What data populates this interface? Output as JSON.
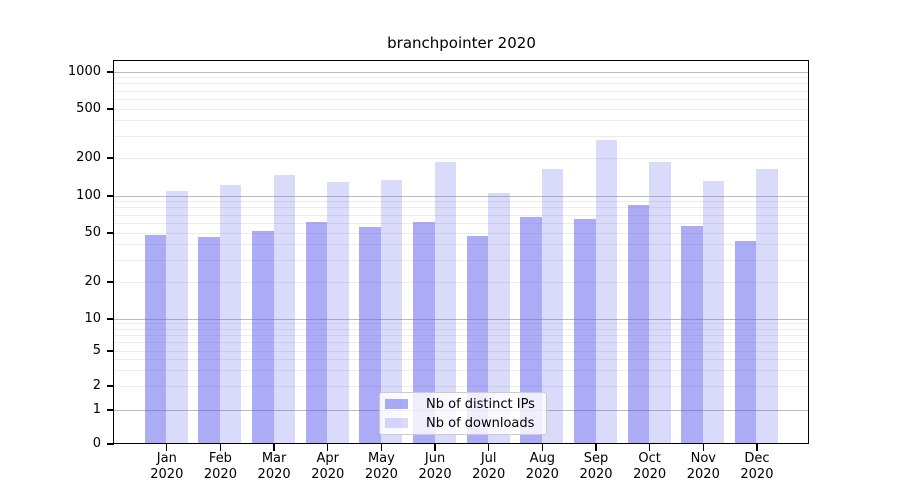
{
  "title": "branchpointer 2020",
  "legend": {
    "items": [
      {
        "label": "Nb of distinct IPs",
        "series": "ip"
      },
      {
        "label": "Nb of downloads",
        "series": "dl"
      }
    ]
  },
  "colors": {
    "bar_blue": "#5858ee",
    "ip_alpha": 0.5,
    "dl_alpha": 0.22,
    "major_grid": "#bbbbbb",
    "minor_grid": "#ececec",
    "axis": "#000000",
    "legend_border": "#cccccc"
  },
  "chart_data": {
    "type": "bar",
    "title": "branchpointer 2020",
    "categories": [
      "Jan 2020",
      "Feb 2020",
      "Mar 2020",
      "Apr 2020",
      "May 2020",
      "Jun 2020",
      "Jul 2020",
      "Aug 2020",
      "Sep 2020",
      "Oct 2020",
      "Nov 2020",
      "Dec 2020"
    ],
    "series": [
      {
        "name": "Nb of distinct IPs",
        "values": [
          48,
          46,
          52,
          62,
          56,
          62,
          47,
          68,
          65,
          84,
          57,
          43
        ]
      },
      {
        "name": "Nb of downloads",
        "values": [
          110,
          123,
          147,
          128,
          133,
          185,
          105,
          165,
          280,
          185,
          132,
          165
        ]
      }
    ],
    "xlabel": "",
    "ylabel": "",
    "yscale": "symlog",
    "yticks": [
      0,
      1,
      2,
      5,
      10,
      20,
      50,
      100,
      200,
      500,
      1000
    ],
    "ylim": [
      0,
      1270
    ],
    "grid": "horizontal major and minor log gridlines",
    "legend_position": "lower center"
  }
}
